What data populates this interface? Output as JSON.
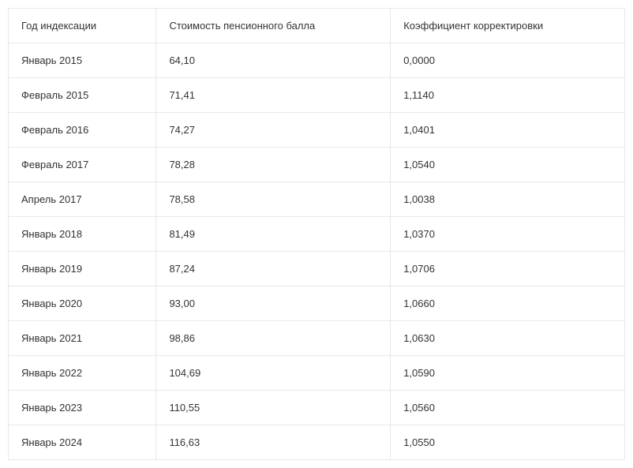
{
  "table": {
    "columns": [
      "Год индексации",
      "Стоимость пенсионного балла",
      "Коэффициент корректировки"
    ],
    "rows": [
      [
        "Январь 2015",
        "64,10",
        "0,0000"
      ],
      [
        "Февраль 2015",
        "71,41",
        "1,1140"
      ],
      [
        "Февраль 2016",
        "74,27",
        "1,0401"
      ],
      [
        "Февраль 2017",
        "78,28",
        "1,0540"
      ],
      [
        "Апрель 2017",
        "78,58",
        "1,0038"
      ],
      [
        "Январь 2018",
        "81,49",
        "1,0370"
      ],
      [
        "Январь 2019",
        "87,24",
        "1,0706"
      ],
      [
        "Январь 2020",
        "93,00",
        "1,0660"
      ],
      [
        "Январь 2021",
        "98,86",
        "1,0630"
      ],
      [
        "Январь 2022",
        "104,69",
        "1,0590"
      ],
      [
        "Январь 2023",
        "110,55",
        "1,0560"
      ],
      [
        "Январь 2024",
        "116,63",
        "1,0550"
      ]
    ],
    "border_color": "#e8e8e8",
    "text_color": "#333333",
    "background_color": "#ffffff",
    "font_size": 13,
    "cell_padding": "14px 16px",
    "column_widths": [
      "24%",
      "38%",
      "38%"
    ]
  }
}
